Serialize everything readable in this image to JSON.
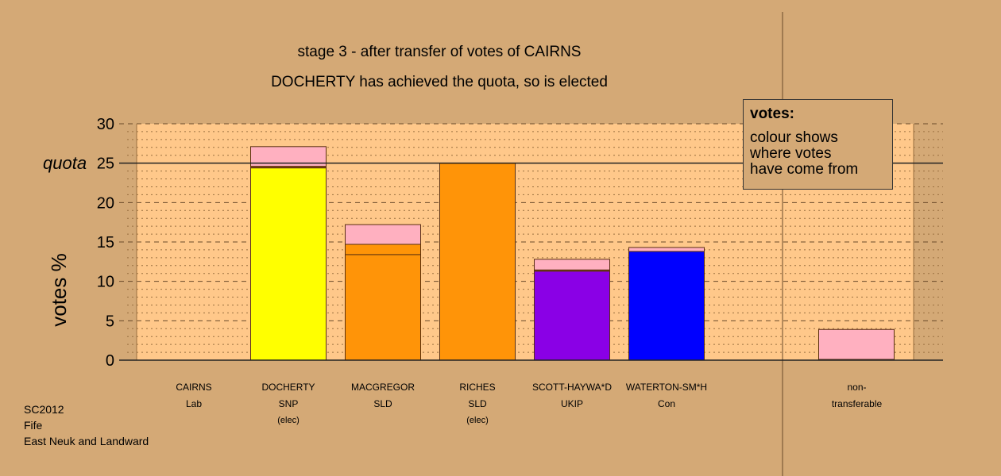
{
  "chart_data": {
    "type": "bar",
    "title": "stage 3 - after transfer of votes of CAIRNS",
    "subtitle": "DOCHERTY has achieved the quota, so is elected",
    "ylabel": "votes %",
    "ylim": [
      0,
      30
    ],
    "yticks": [
      "0",
      "5",
      "10",
      "15",
      "20",
      "25",
      "30"
    ],
    "quota_label": "quota",
    "quota": 25,
    "grid": "dashed major every 5, dotted minor every 1",
    "categories": [
      {
        "name": "CAIRNS",
        "party": "Lab",
        "note": ""
      },
      {
        "name": "DOCHERTY",
        "party": "SNP",
        "note": "(elec)"
      },
      {
        "name": "MACGREGOR",
        "party": "SLD",
        "note": ""
      },
      {
        "name": "RICHES",
        "party": "SLD",
        "note": "(elec)"
      },
      {
        "name": "SCOTT-HAYWA*D",
        "party": "UKIP",
        "note": ""
      },
      {
        "name": "WATERTON-SM*H",
        "party": "Con",
        "note": ""
      }
    ],
    "nontransferable": {
      "line1": "non-",
      "line2": "transferable"
    },
    "stacks": [
      [],
      [
        {
          "v": 24.4,
          "color": "#ffff00"
        },
        {
          "v": 0.2,
          "color": "#8b4513"
        },
        {
          "v": 2.5,
          "color": "#ffb0c0"
        }
      ],
      [
        {
          "v": 13.4,
          "color": "#ff9408"
        },
        {
          "v": 1.3,
          "color": "#ff9408"
        },
        {
          "v": 2.5,
          "color": "#ffb0c0"
        }
      ],
      [
        {
          "v": 25.0,
          "color": "#ff9408"
        }
      ],
      [
        {
          "v": 11.3,
          "color": "#8a00e6"
        },
        {
          "v": 0.15,
          "color": "#8b4513"
        },
        {
          "v": 1.35,
          "color": "#ffb0c0"
        }
      ],
      [
        {
          "v": 13.8,
          "color": "#0000ff"
        },
        {
          "v": 0.5,
          "color": "#ffb0c0"
        }
      ],
      [
        {
          "v": 0.1,
          "color": "#8b4513"
        },
        {
          "v": 3.8,
          "color": "#ffb0c0"
        }
      ]
    ],
    "legend": {
      "title": "votes:",
      "lines": [
        "colour shows",
        "where votes",
        "have come from"
      ],
      "placement": "top-right"
    }
  },
  "footer": [
    "SC2012",
    "Fife",
    "East Neuk and Landward"
  ]
}
